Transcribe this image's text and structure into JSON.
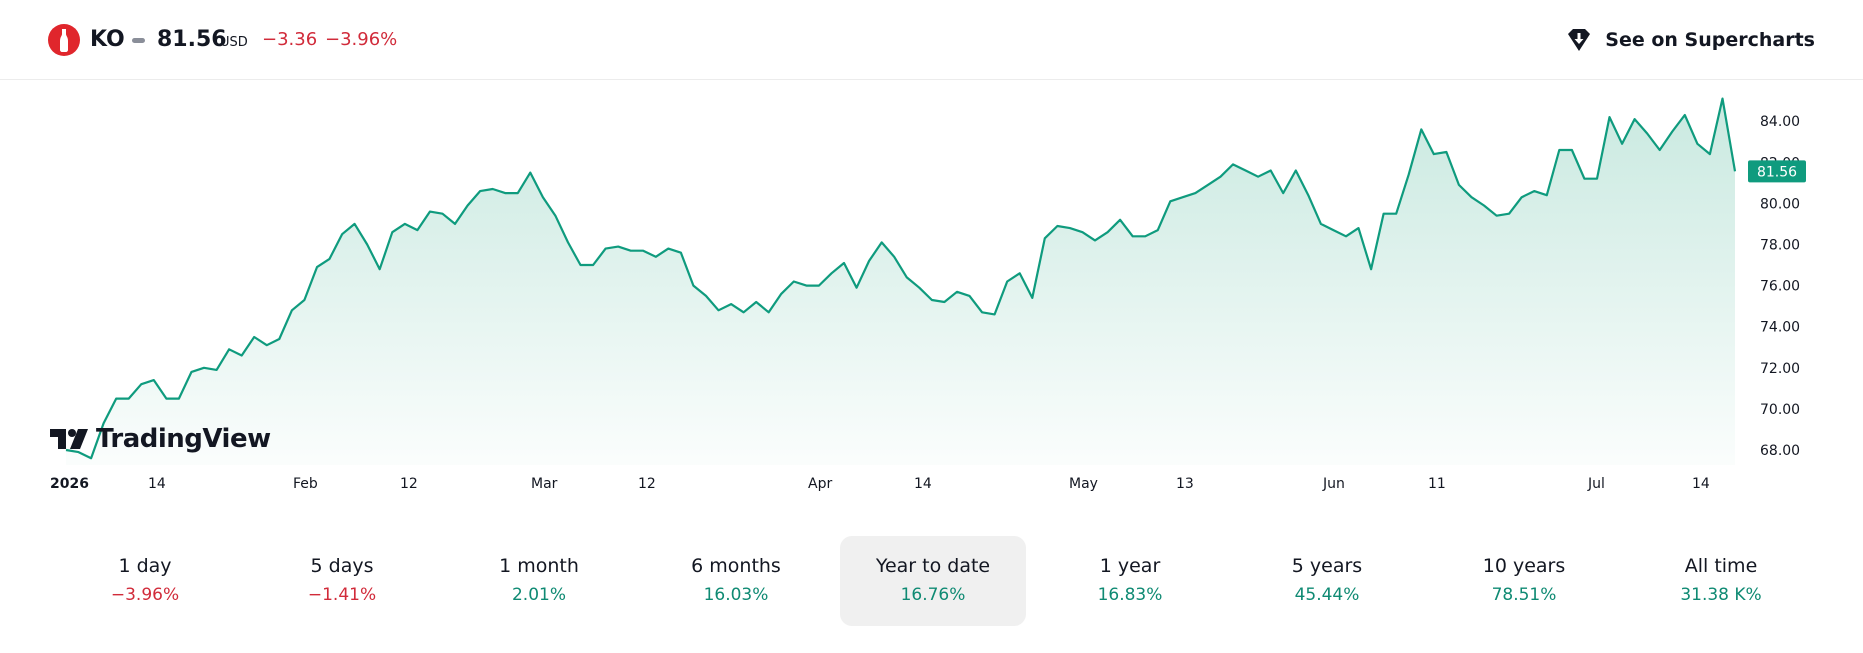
{
  "header": {
    "symbol": "KO",
    "price": "81.56",
    "currency": "USD",
    "change": "−3.36",
    "change_percent": "−3.96%",
    "logo_icon": "coca-cola-bottle-icon",
    "supercharts_label": "See on Supercharts",
    "supercharts_icon": "tradingview-shield-icon"
  },
  "watermark": {
    "text": "TradingView",
    "icon": "tradingview-logo-icon"
  },
  "colors": {
    "line": "#0f9b7e",
    "area_top": "#c9e9e0",
    "up": "#0f8a73",
    "down": "#d12b3a",
    "price_tag": "#0f9b7e"
  },
  "chart_data": {
    "type": "area",
    "ylim": [
      67.5,
      85.5
    ],
    "y_ticks": [
      68,
      70,
      72,
      74,
      76,
      78,
      80,
      82,
      84
    ],
    "y_tick_labels": [
      "68.00",
      "70.00",
      "72.00",
      "74.00",
      "76.00",
      "78.00",
      "80.00",
      "82.00",
      "84.00"
    ],
    "x_labels": [
      "2026",
      "14",
      "Feb",
      "12",
      "Mar",
      "12",
      "Apr",
      "14",
      "May",
      "13",
      "Jun",
      "11",
      "Jul",
      "14"
    ],
    "last_price_label": "81.56",
    "values": [
      68.0,
      67.9,
      67.6,
      69.3,
      70.5,
      70.5,
      71.2,
      71.4,
      70.5,
      70.5,
      71.8,
      72.0,
      71.9,
      72.9,
      72.6,
      73.5,
      73.1,
      73.4,
      74.8,
      75.3,
      76.9,
      77.3,
      78.5,
      79.0,
      78.0,
      76.8,
      78.6,
      79.0,
      78.7,
      79.6,
      79.5,
      79.0,
      79.9,
      80.6,
      80.7,
      80.5,
      80.5,
      81.5,
      80.3,
      79.4,
      78.1,
      77.0,
      77.0,
      77.8,
      77.9,
      77.7,
      77.7,
      77.4,
      77.8,
      77.6,
      76.0,
      75.5,
      74.8,
      75.1,
      74.7,
      75.2,
      74.7,
      75.6,
      76.2,
      76.0,
      76.0,
      76.6,
      77.1,
      75.9,
      77.2,
      78.1,
      77.4,
      76.4,
      75.9,
      75.3,
      75.2,
      75.7,
      75.5,
      74.7,
      74.6,
      76.2,
      76.6,
      75.4,
      78.3,
      78.9,
      78.8,
      78.6,
      78.2,
      78.6,
      79.2,
      78.4,
      78.4,
      78.7,
      80.1,
      80.3,
      80.5,
      80.9,
      81.3,
      81.9,
      81.6,
      81.3,
      81.6,
      80.5,
      81.6,
      80.4,
      79.0,
      78.7,
      78.4,
      78.8,
      76.8,
      79.5,
      79.5,
      81.4,
      83.6,
      82.4,
      82.5,
      80.9,
      80.3,
      79.9,
      79.4,
      79.5,
      80.3,
      80.6,
      80.4,
      82.6,
      82.6,
      81.2,
      81.2,
      84.2,
      82.9,
      84.1,
      83.4,
      82.6,
      83.5,
      84.3,
      82.9,
      82.4,
      85.1,
      81.56
    ]
  },
  "periods": [
    {
      "label": "1 day",
      "value": "−3.96%",
      "dir": "neg",
      "active": false
    },
    {
      "label": "5 days",
      "value": "−1.41%",
      "dir": "neg",
      "active": false
    },
    {
      "label": "1 month",
      "value": "2.01%",
      "dir": "pos",
      "active": false
    },
    {
      "label": "6 months",
      "value": "16.03%",
      "dir": "pos",
      "active": false
    },
    {
      "label": "Year to date",
      "value": "16.76%",
      "dir": "pos",
      "active": true
    },
    {
      "label": "1 year",
      "value": "16.83%",
      "dir": "pos",
      "active": false
    },
    {
      "label": "5 years",
      "value": "45.44%",
      "dir": "pos",
      "active": false
    },
    {
      "label": "10 years",
      "value": "78.51%",
      "dir": "pos",
      "active": false
    },
    {
      "label": "All time",
      "value": "31.38 K%",
      "dir": "pos",
      "active": false
    }
  ]
}
